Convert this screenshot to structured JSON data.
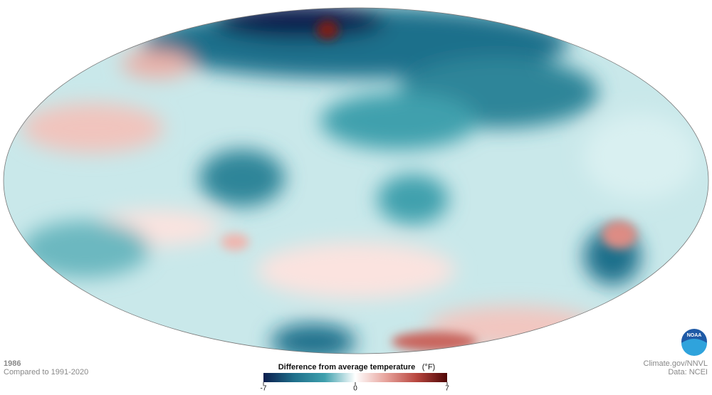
{
  "caption": {
    "year": "1986",
    "baseline": "Compared to 1991-2020"
  },
  "legend": {
    "title": "Difference from average temperature",
    "unit": "(°F)",
    "ticks": [
      -7,
      0,
      7
    ],
    "colors": [
      "#0b1d4d",
      "#1f6f8b",
      "#3fa0ad",
      "#ffffff",
      "#e7a39c",
      "#b8463f",
      "#4f0606"
    ]
  },
  "credits": {
    "source": "Climate.gov/NNVL",
    "data": "Data: NCEI"
  },
  "logo": "NOAA"
}
